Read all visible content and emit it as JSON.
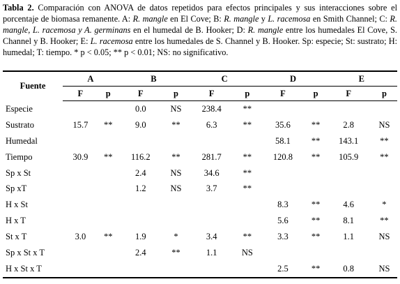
{
  "caption": [
    {
      "text": "Tabla 2.",
      "style": "bold"
    },
    {
      "text": " Comparación con ANOVA de datos repetidos para efectos principales y sus interacciones sobre el porcentaje de biomasa remanente. A: ",
      "style": "normal"
    },
    {
      "text": "R. mangle",
      "style": "italic"
    },
    {
      "text": " en El Cove; B: ",
      "style": "normal"
    },
    {
      "text": "R. mangle",
      "style": "italic"
    },
    {
      "text": " y ",
      "style": "normal"
    },
    {
      "text": "L. racemosa",
      "style": "italic"
    },
    {
      "text": " en Smith Channel; C: ",
      "style": "normal"
    },
    {
      "text": "R. mangle, L. racemosa y A. germinans",
      "style": "italic"
    },
    {
      "text": " en el humedal de B. Hooker; D: ",
      "style": "normal"
    },
    {
      "text": "R. mangle",
      "style": "italic"
    },
    {
      "text": " entre los humedales El Cove, S. Channel y B. Hooker; E: ",
      "style": "normal"
    },
    {
      "text": "L. racemosa",
      "style": "italic"
    },
    {
      "text": " entre los humedales de S. Channel y B. Hooker. Sp: especie; St: sustrato; H: humedal; T: tiempo. * p < 0.05; ** p < 0.01; NS: no significativo.",
      "style": "normal"
    }
  ],
  "table": {
    "stub_header": "Fuente",
    "groups": [
      "A",
      "B",
      "C",
      "D",
      "E"
    ],
    "subheaders": [
      "F",
      "p",
      "F",
      "p",
      "F",
      "p",
      "F",
      "p",
      "F",
      "p"
    ],
    "rows": [
      [
        "Especie",
        null,
        null,
        "0.0",
        "NS",
        "238.4",
        "**",
        null,
        null,
        null,
        null
      ],
      [
        "Sustrato",
        "15.7",
        "**",
        "9.0",
        "**",
        "6.3",
        "**",
        "35.6",
        "**",
        "2.8",
        "NS"
      ],
      [
        "Humedal",
        null,
        null,
        null,
        null,
        null,
        null,
        "58.1",
        "**",
        "143.1",
        "**"
      ],
      [
        "Tiempo",
        "30.9",
        "**",
        "116.2",
        "**",
        "281.7",
        "**",
        "120.8",
        "**",
        "105.9",
        "**"
      ],
      [
        "Sp x St",
        null,
        null,
        "2.4",
        "NS",
        "34.6",
        "**",
        null,
        null,
        null,
        null
      ],
      [
        "Sp xT",
        null,
        null,
        "1.2",
        "NS",
        "3.7",
        "**",
        null,
        null,
        null,
        null
      ],
      [
        "H x St",
        null,
        null,
        null,
        null,
        null,
        null,
        "8.3",
        "**",
        "4.6",
        "*"
      ],
      [
        "H x T",
        null,
        null,
        null,
        null,
        null,
        null,
        "5.6",
        "**",
        "8.1",
        "**"
      ],
      [
        "St x T",
        "3.0",
        "**",
        "1.9",
        "*",
        "3.4",
        "**",
        "3.3",
        "**",
        "1.1",
        "NS"
      ],
      [
        "Sp x St x T",
        null,
        null,
        "2.4",
        "**",
        "1.1",
        "NS",
        null,
        null,
        null,
        null
      ],
      [
        "H x St x T",
        null,
        null,
        null,
        null,
        null,
        null,
        "2.5",
        "**",
        "0.8",
        "NS"
      ]
    ]
  }
}
